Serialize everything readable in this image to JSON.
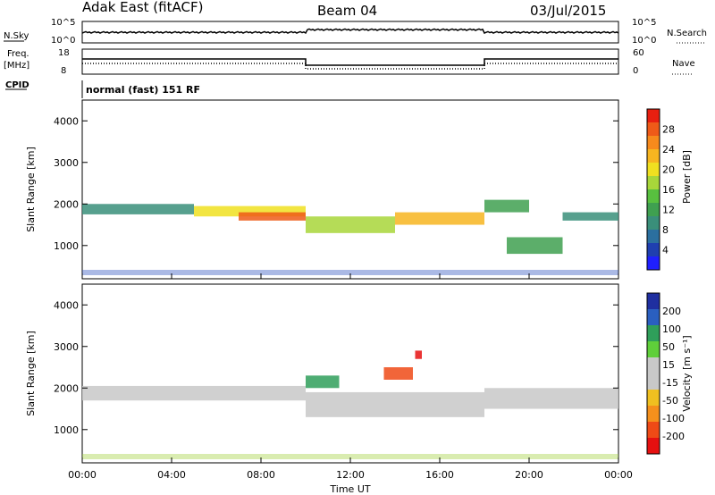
{
  "header": {
    "title": "Adak East (fitACF)",
    "beam": "Beam 04",
    "date": "03/Jul/2015"
  },
  "panels": {
    "nsky": {
      "label": "N.Sky",
      "right_label": "N.Search",
      "left_ticks": [
        "10^5",
        "10^0"
      ],
      "right_ticks": [
        "10^5",
        "10^0"
      ]
    },
    "freq": {
      "label": "Freq.",
      "unit": "[MHz]",
      "right_label": "Nave",
      "left_ticks": [
        "18",
        "8"
      ],
      "right_ticks": [
        "60",
        "0"
      ]
    },
    "cpid": {
      "label": "CPID",
      "text": "normal (fast) 151 RF"
    }
  },
  "chart_data": [
    {
      "type": "heatmap",
      "name": "power",
      "ylabel": "Slant Range [km]",
      "xlabel": "",
      "ylim": [
        200,
        4500
      ],
      "yticks": [
        "1000",
        "2000",
        "3000",
        "4000"
      ],
      "colorbar": {
        "label": "Power [dB]",
        "ticks": [
          "4",
          "8",
          "12",
          "16",
          "20",
          "24",
          "28"
        ],
        "colors": [
          "#1f1fff",
          "#1f3fb0",
          "#2b6f9f",
          "#3a8f7a",
          "#3fa050",
          "#58c03f",
          "#a8d63a",
          "#f0e020",
          "#f7b520",
          "#f78a1c",
          "#ef5a18",
          "#e81f10"
        ]
      },
      "bands": [
        {
          "start_h": 0,
          "end_h": 5,
          "range_km": [
            1750,
            2000
          ],
          "power_db": 8
        },
        {
          "start_h": 5,
          "end_h": 10,
          "range_km": [
            1700,
            1950
          ],
          "power_db": 20
        },
        {
          "start_h": 7,
          "end_h": 10,
          "range_km": [
            1600,
            1800
          ],
          "power_db": 26
        },
        {
          "start_h": 10,
          "end_h": 14,
          "range_km": [
            1300,
            1700
          ],
          "power_db": 16
        },
        {
          "start_h": 14,
          "end_h": 18,
          "range_km": [
            1500,
            1800
          ],
          "power_db": 22
        },
        {
          "start_h": 18,
          "end_h": 20,
          "range_km": [
            1800,
            2100
          ],
          "power_db": 12
        },
        {
          "start_h": 19,
          "end_h": 21.5,
          "range_km": [
            800,
            1200
          ],
          "power_db": 10
        },
        {
          "start_h": 21.5,
          "end_h": 24,
          "range_km": [
            1600,
            1800
          ],
          "power_db": 8
        }
      ]
    },
    {
      "type": "heatmap",
      "name": "velocity",
      "ylabel": "Slant Range [km]",
      "xlabel": "Time UT",
      "ylim": [
        200,
        4500
      ],
      "yticks": [
        "1000",
        "2000",
        "3000",
        "4000"
      ],
      "xticks": [
        "00:00",
        "04:00",
        "08:00",
        "12:00",
        "16:00",
        "20:00",
        "00:00"
      ],
      "xlim_hours": [
        0,
        24
      ],
      "colorbar": {
        "label": "Velocity [m s⁻¹]",
        "ticks": [
          "200",
          "100",
          "50",
          "15",
          "-15",
          "-50",
          "-100",
          "-200"
        ],
        "colors": [
          "#1f2fa0",
          "#2a5fc0",
          "#2f9f5a",
          "#5fcf3a",
          "#c8c8c8",
          "#c8c8c8",
          "#f0c020",
          "#f5901c",
          "#ef4a16",
          "#e61010"
        ]
      },
      "bands": [
        {
          "start_h": 0,
          "end_h": 10,
          "range_km": [
            1700,
            2050
          ],
          "velocity": 0
        },
        {
          "start_h": 10,
          "end_h": 18,
          "range_km": [
            1300,
            1900
          ],
          "velocity": 0
        },
        {
          "start_h": 18,
          "end_h": 24,
          "range_km": [
            1500,
            2000
          ],
          "velocity": 0
        },
        {
          "start_h": 14.9,
          "end_h": 15.2,
          "range_km": [
            2700,
            2900
          ],
          "velocity": -200
        },
        {
          "start_h": 13.5,
          "end_h": 14.8,
          "range_km": [
            2200,
            2500
          ],
          "velocity": -100
        },
        {
          "start_h": 10,
          "end_h": 11.5,
          "range_km": [
            2000,
            2300
          ],
          "velocity": 50
        }
      ]
    }
  ]
}
